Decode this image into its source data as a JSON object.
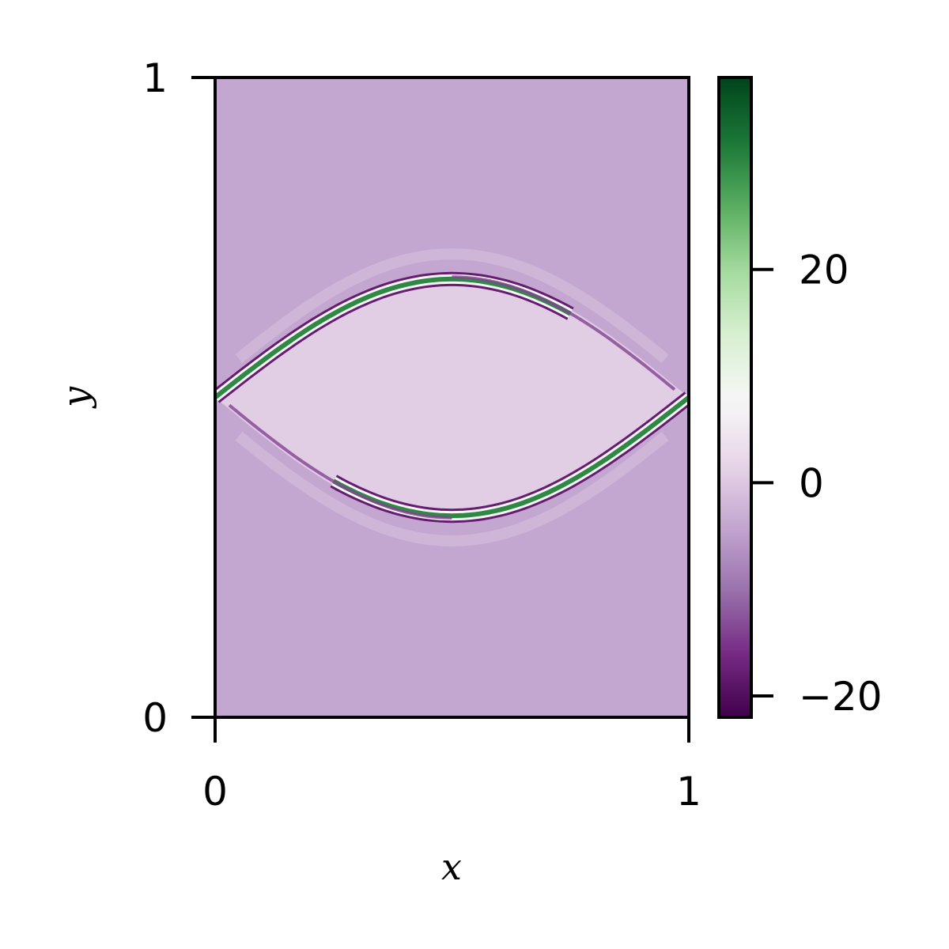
{
  "chart_data": {
    "type": "heatmap",
    "title": "",
    "xlabel": "x",
    "ylabel": "y",
    "xlim": [
      0,
      1
    ],
    "ylim": [
      0,
      1
    ],
    "x_ticks": [
      {
        "value": 0,
        "label": "0"
      },
      {
        "value": 1,
        "label": "1"
      }
    ],
    "y_ticks": [
      {
        "value": 0,
        "label": "0"
      },
      {
        "value": 1,
        "label": "1"
      }
    ],
    "colorbar": {
      "colormap": "PRGn",
      "vmin": -22,
      "vmax": 38,
      "center": 7.5,
      "ticks": [
        {
          "value": -20,
          "label": "−20"
        },
        {
          "value": 0,
          "label": "0"
        },
        {
          "value": 20,
          "label": "20"
        }
      ],
      "colors": [
        "#40004b",
        "#762a83",
        "#9970ab",
        "#c2a5cf",
        "#e7d4e8",
        "#f7f7f7",
        "#d9f0d3",
        "#a6dba0",
        "#5aae61",
        "#1b7837",
        "#00441b"
      ]
    },
    "field": {
      "description": "shear layer rolled into a cat's-eye vortex",
      "background_value": -4,
      "interior_value": 1.5,
      "band_peak_value": 30,
      "band_edge_value": -18,
      "interface_center_y": 0.5,
      "interface_amplitude": 0.185
    }
  }
}
